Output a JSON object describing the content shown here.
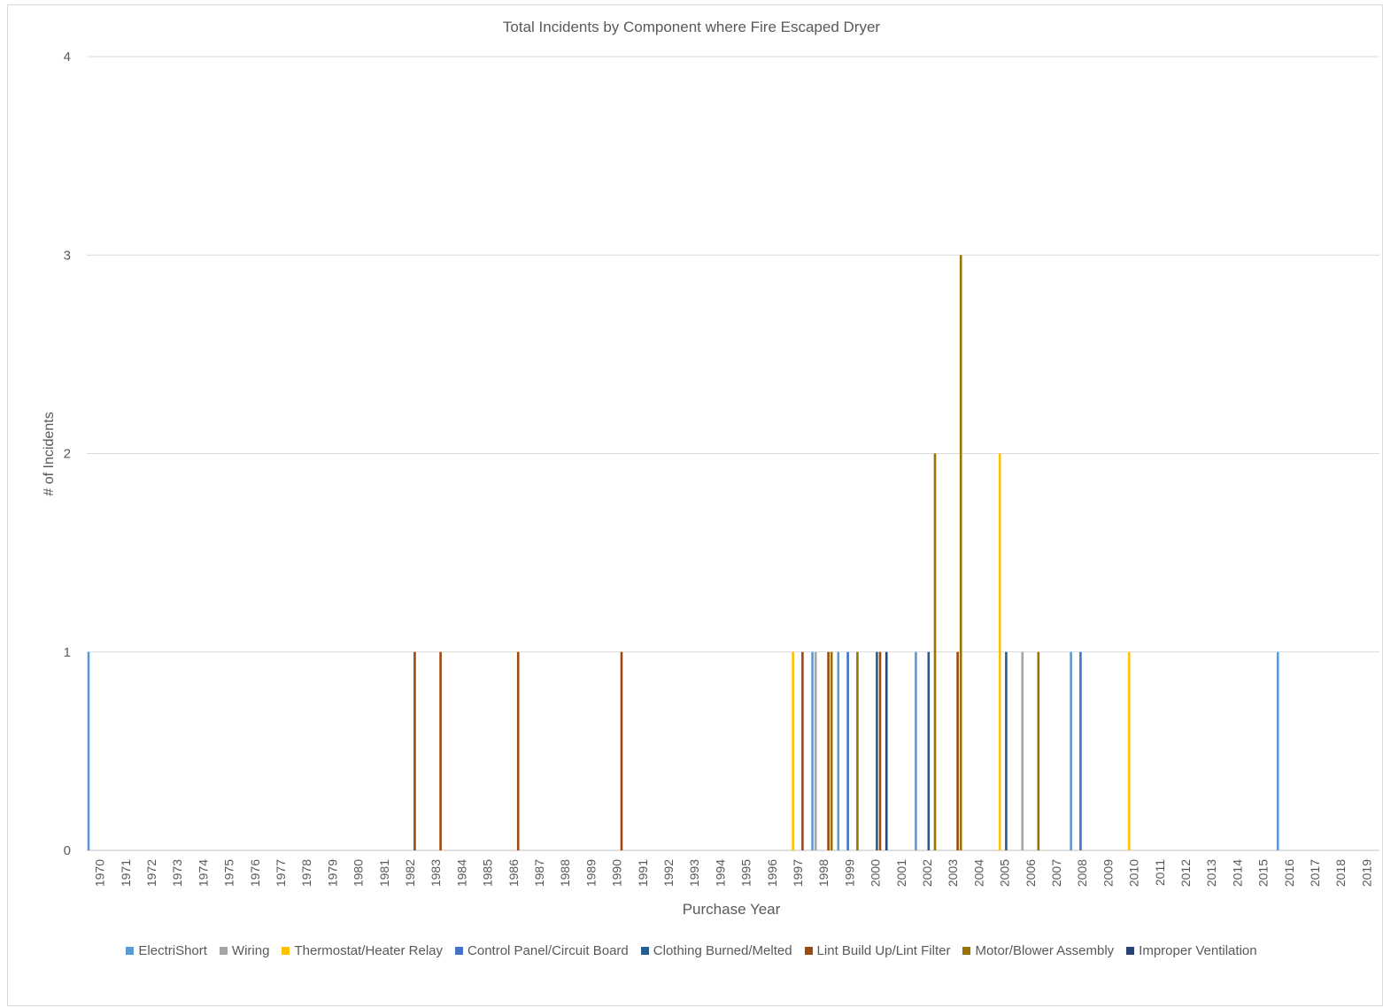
{
  "chart_data": {
    "type": "bar",
    "title": "Total Incidents by Component where Fire Escaped Dryer",
    "xlabel": "Purchase Year",
    "ylabel": "# of Incidents",
    "ylim": [
      0,
      4
    ],
    "yticks": [
      "0",
      "1",
      "2",
      "3",
      "4"
    ],
    "grid": true,
    "legend_position": "bottom",
    "categories": [
      "1970",
      "1971",
      "1972",
      "1973",
      "1974",
      "1975",
      "1976",
      "1977",
      "1978",
      "1979",
      "1980",
      "1981",
      "1982",
      "1983",
      "1984",
      "1985",
      "1986",
      "1987",
      "1988",
      "1989",
      "1990",
      "1991",
      "1992",
      "1993",
      "1994",
      "1995",
      "1996",
      "1997",
      "1998",
      "1999",
      "2000",
      "2001",
      "2002",
      "2003",
      "2004",
      "2005",
      "2006",
      "2007",
      "2008",
      "2009",
      "2010",
      "2011",
      "2012",
      "2013",
      "2014",
      "2015",
      "2016",
      "2017",
      "2018",
      "2019"
    ],
    "series": [
      {
        "name": "ElectriShort",
        "color": "#5B9BD5",
        "values": [
          1,
          0,
          0,
          0,
          0,
          0,
          0,
          0,
          0,
          0,
          0,
          0,
          0,
          0,
          0,
          0,
          0,
          0,
          0,
          0,
          0,
          0,
          0,
          0,
          0,
          0,
          0,
          0,
          1,
          1,
          0,
          0,
          1,
          0,
          0,
          0,
          0,
          0,
          1,
          0,
          0,
          0,
          0,
          0,
          0,
          0,
          1,
          0,
          0,
          0
        ]
      },
      {
        "name": "Wiring",
        "color": "#A5A5A5",
        "values": [
          0,
          0,
          0,
          0,
          0,
          0,
          0,
          0,
          0,
          0,
          0,
          0,
          0,
          0,
          0,
          0,
          0,
          0,
          0,
          0,
          0,
          0,
          0,
          0,
          0,
          0,
          0,
          0,
          1,
          0,
          0,
          0,
          0,
          0,
          0,
          0,
          1,
          0,
          0,
          0,
          0,
          0,
          0,
          0,
          0,
          0,
          0,
          0,
          0,
          0
        ]
      },
      {
        "name": "Thermostat/Heater Relay",
        "color": "#FFC000",
        "values": [
          0,
          0,
          0,
          0,
          0,
          0,
          0,
          0,
          0,
          0,
          0,
          0,
          0,
          0,
          0,
          0,
          0,
          0,
          0,
          0,
          0,
          0,
          0,
          0,
          0,
          0,
          0,
          1,
          0,
          0,
          0,
          0,
          0,
          0,
          0,
          2,
          0,
          0,
          0,
          0,
          1,
          0,
          0,
          0,
          0,
          0,
          0,
          0,
          0,
          0
        ]
      },
      {
        "name": "Control Panel/Circuit Board",
        "color": "#4472C4",
        "values": [
          0,
          0,
          0,
          0,
          0,
          0,
          0,
          0,
          0,
          0,
          0,
          0,
          0,
          0,
          0,
          0,
          0,
          0,
          0,
          0,
          0,
          0,
          0,
          0,
          0,
          0,
          0,
          0,
          0,
          1,
          0,
          0,
          0,
          0,
          0,
          0,
          0,
          0,
          1,
          0,
          0,
          0,
          0,
          0,
          0,
          0,
          0,
          0,
          0,
          0
        ]
      },
      {
        "name": "Clothing Burned/Melted",
        "color": "#255E91",
        "values": [
          0,
          0,
          0,
          0,
          0,
          0,
          0,
          0,
          0,
          0,
          0,
          0,
          0,
          0,
          0,
          0,
          0,
          0,
          0,
          0,
          0,
          0,
          0,
          0,
          0,
          0,
          0,
          0,
          0,
          0,
          1,
          0,
          1,
          0,
          0,
          1,
          0,
          0,
          0,
          0,
          0,
          0,
          0,
          0,
          0,
          0,
          0,
          0,
          0,
          0
        ]
      },
      {
        "name": "Lint Build Up/Lint Filter",
        "color": "#9E480E",
        "values": [
          0,
          0,
          0,
          0,
          0,
          0,
          0,
          0,
          0,
          0,
          0,
          0,
          1,
          1,
          0,
          0,
          1,
          0,
          0,
          0,
          1,
          0,
          0,
          0,
          0,
          0,
          0,
          1,
          1,
          0,
          1,
          0,
          0,
          1,
          0,
          0,
          0,
          0,
          0,
          0,
          0,
          0,
          0,
          0,
          0,
          0,
          0,
          0,
          0,
          0
        ]
      },
      {
        "name": "Motor/Blower Assembly",
        "color": "#997300",
        "values": [
          0,
          0,
          0,
          0,
          0,
          0,
          0,
          0,
          0,
          0,
          0,
          0,
          0,
          0,
          0,
          0,
          0,
          0,
          0,
          0,
          0,
          0,
          0,
          0,
          0,
          0,
          0,
          0,
          1,
          1,
          0,
          0,
          2,
          3,
          0,
          0,
          1,
          0,
          0,
          0,
          0,
          0,
          0,
          0,
          0,
          0,
          0,
          0,
          0,
          0
        ]
      },
      {
        "name": "Improper Ventilation",
        "color": "#264478",
        "values": [
          0,
          0,
          0,
          0,
          0,
          0,
          0,
          0,
          0,
          0,
          0,
          0,
          0,
          0,
          0,
          0,
          0,
          0,
          0,
          0,
          0,
          0,
          0,
          0,
          0,
          0,
          0,
          0,
          0,
          0,
          1,
          0,
          0,
          0,
          0,
          0,
          0,
          0,
          0,
          0,
          0,
          0,
          0,
          0,
          0,
          0,
          0,
          0,
          0,
          0
        ]
      }
    ]
  }
}
